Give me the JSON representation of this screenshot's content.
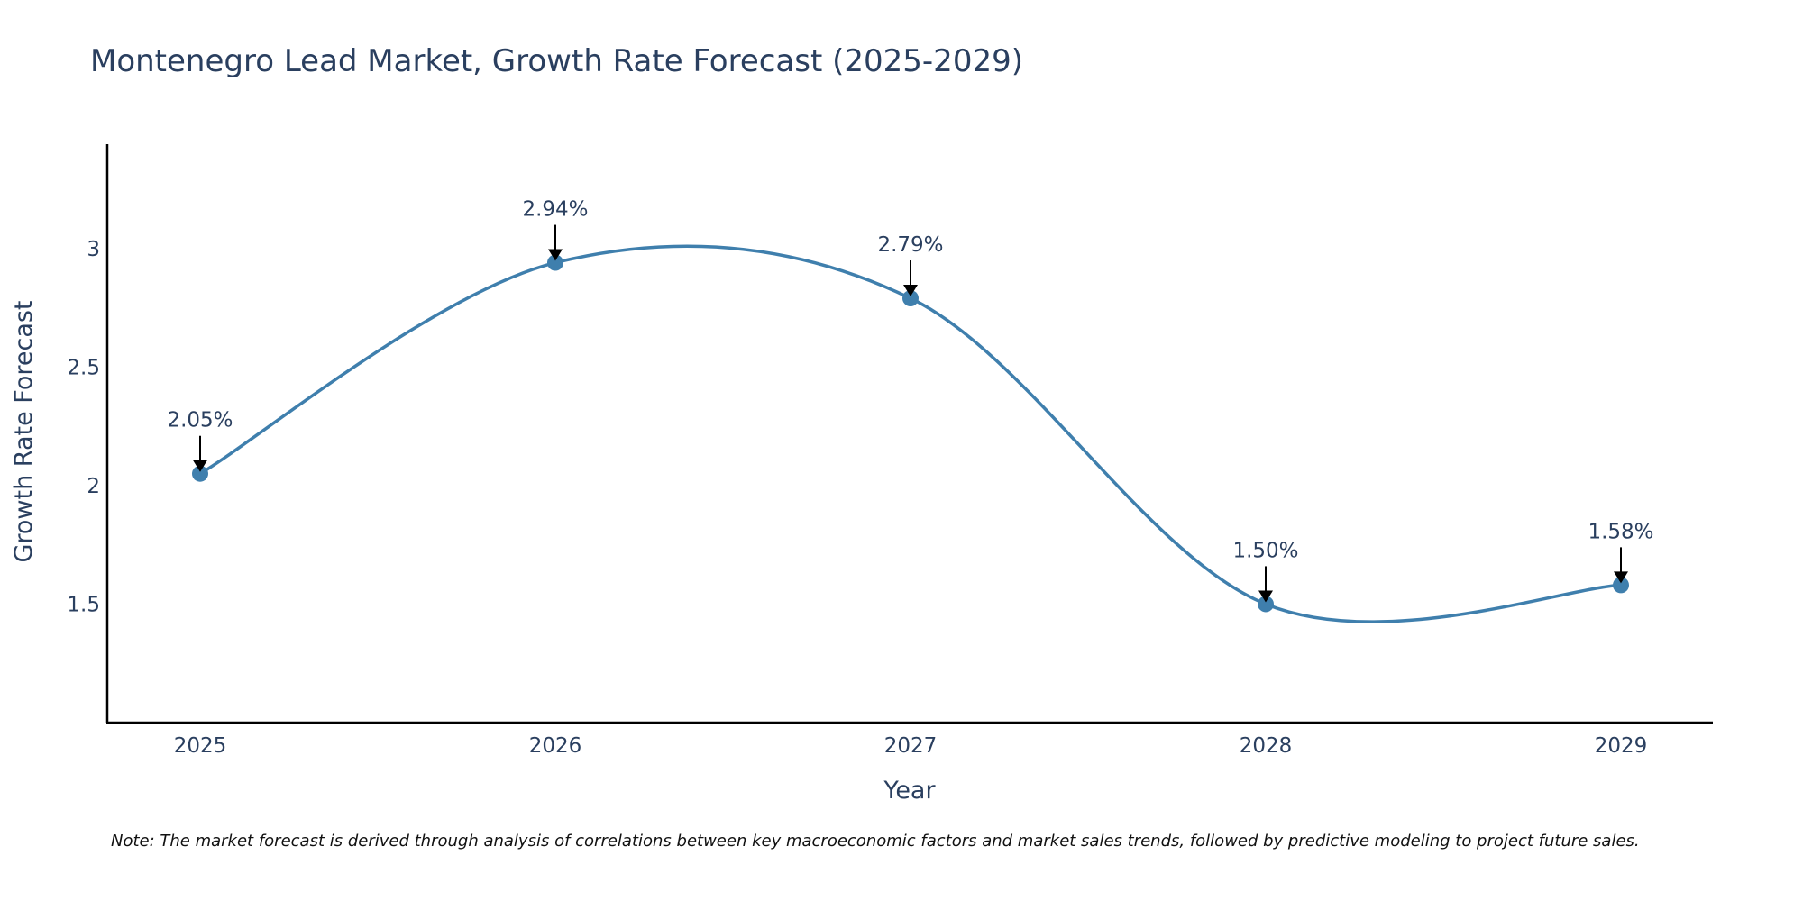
{
  "chart_data": {
    "type": "line",
    "title": "Montenegro Lead Market, Growth Rate Forecast (2025-2029)",
    "xlabel": "Year",
    "ylabel": "Growth Rate Forecast",
    "categories": [
      "2025",
      "2026",
      "2027",
      "2028",
      "2029"
    ],
    "values": [
      2.05,
      2.94,
      2.79,
      1.5,
      1.58
    ],
    "data_labels": [
      "2.05%",
      "2.94%",
      "2.79%",
      "1.50%",
      "1.58%"
    ],
    "yticks": [
      1.5,
      2,
      2.5,
      3
    ],
    "ytick_labels": [
      "1.5",
      "2",
      "2.5",
      "3"
    ],
    "ylim": [
      1.0,
      3.44
    ],
    "grid": false,
    "line_color": "#3f7fad",
    "marker_color": "#3f7fad",
    "line_shape": "spline",
    "note": "Note: The market forecast is derived through analysis of correlations between key macroeconomic factors and market sales trends, followed by predictive modeling to project future sales."
  }
}
